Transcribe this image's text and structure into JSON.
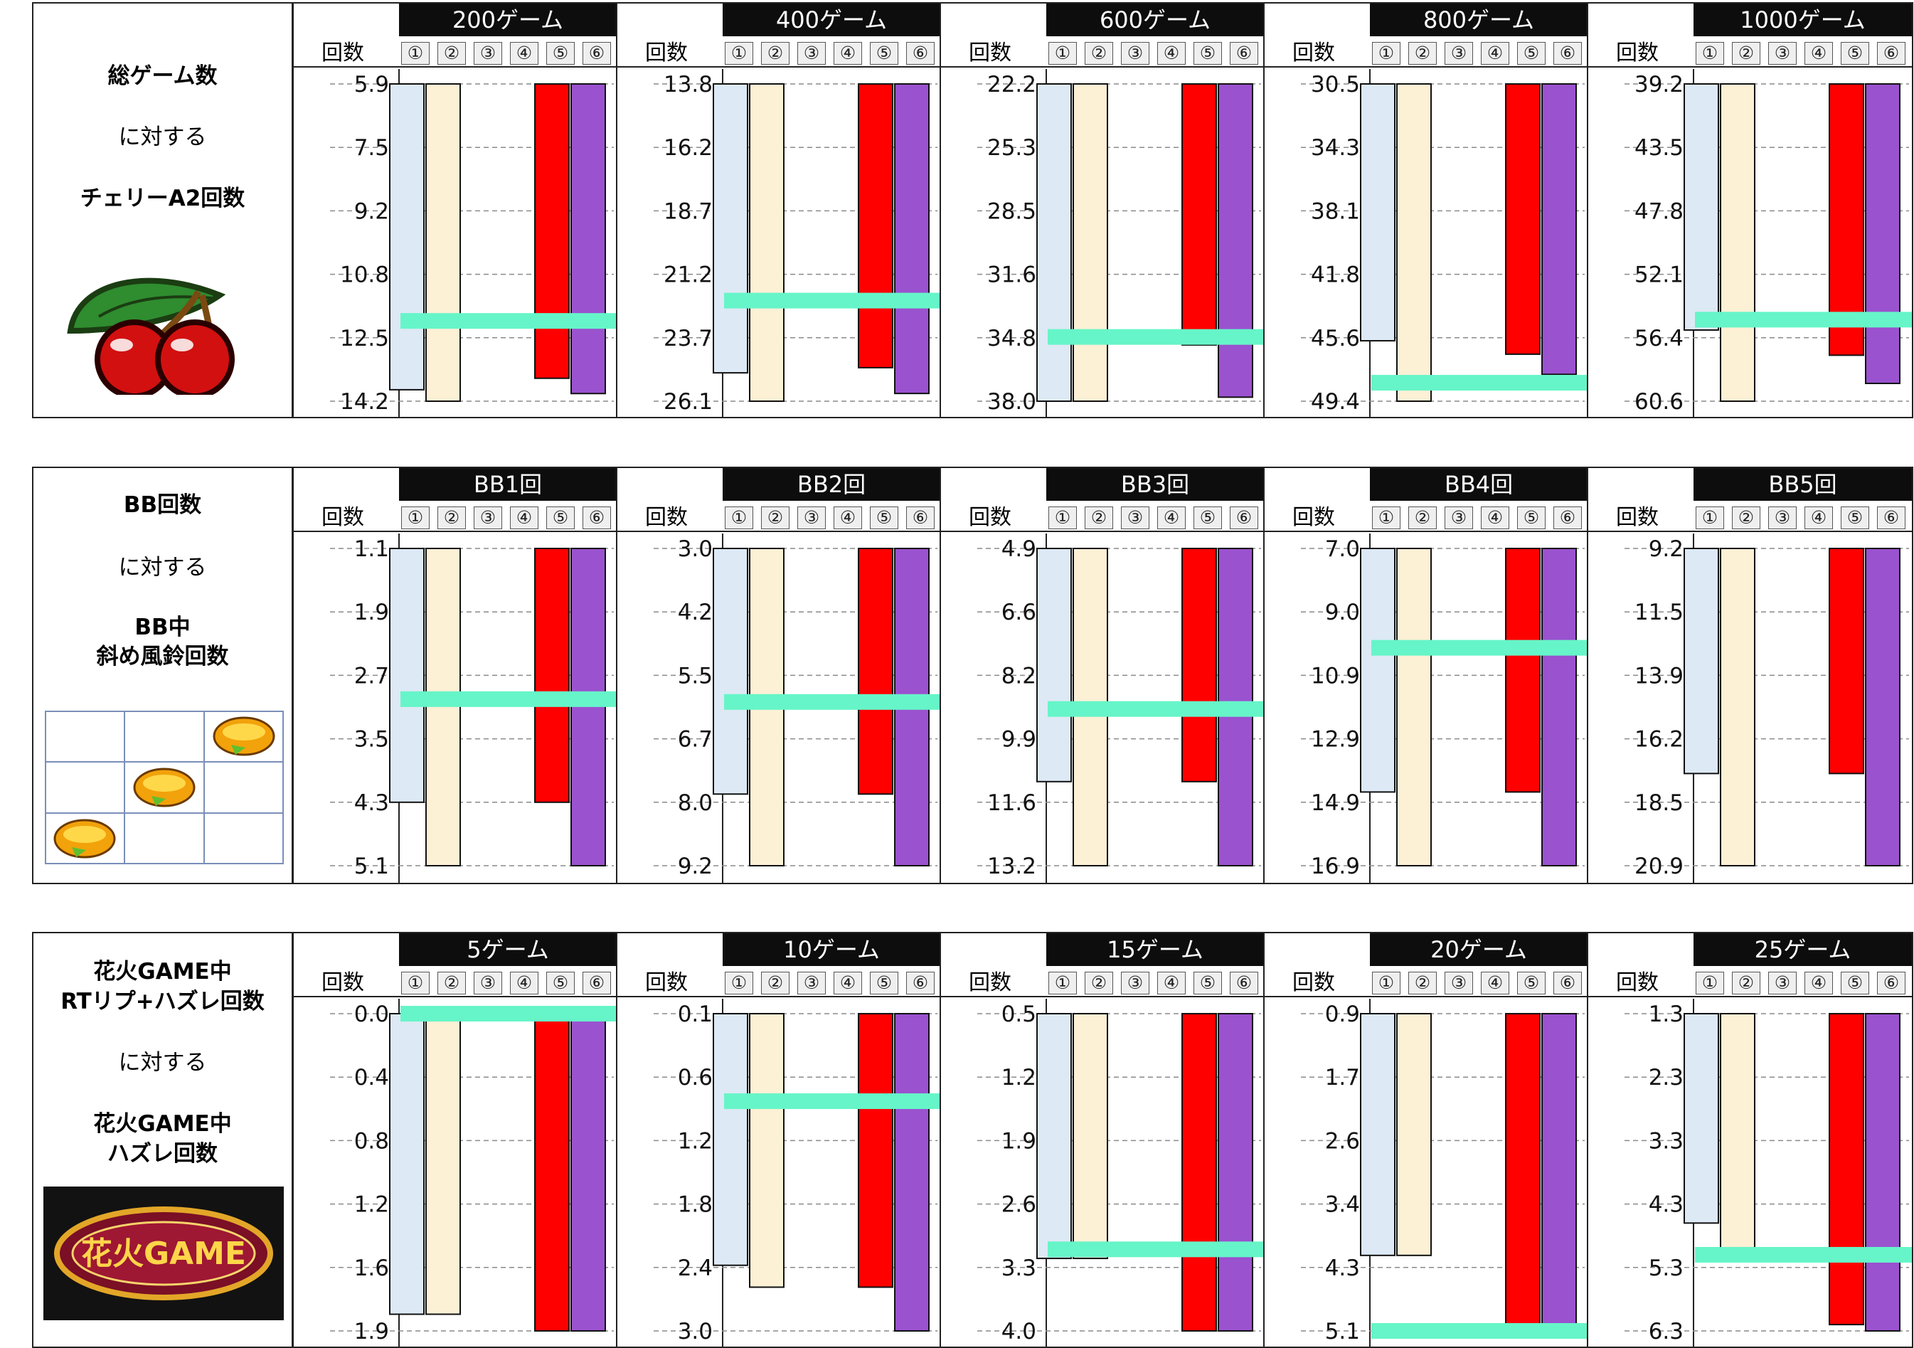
{
  "colors": {
    "setting1": "#dde9f5",
    "setting2": "#fcf0d5",
    "setting5": "#ff0000",
    "setting6": "#9a52cf",
    "current_line": "#66f5c8",
    "header_bg": "#0d0d0d"
  },
  "header": {
    "count_label": "回数",
    "settings": [
      "①",
      "②",
      "③",
      "④",
      "⑤",
      "⑥"
    ]
  },
  "rows": [
    {
      "label_lines": [
        "総ゲーム数",
        "に対する",
        "チェリーA2回数"
      ],
      "icon": "cherry-icon",
      "panels": [
        {
          "title": "200ゲーム",
          "ticks": [
            "5.9",
            "7.5",
            "9.2",
            "10.8",
            "12.5",
            "14.2"
          ]
        },
        {
          "title": "400ゲーム",
          "ticks": [
            "13.8",
            "16.2",
            "18.7",
            "21.2",
            "23.7",
            "26.1"
          ]
        },
        {
          "title": "600ゲーム",
          "ticks": [
            "22.2",
            "25.3",
            "28.5",
            "31.6",
            "34.8",
            "38.0"
          ]
        },
        {
          "title": "800ゲーム",
          "ticks": [
            "30.5",
            "34.3",
            "38.1",
            "41.8",
            "45.6",
            "49.4"
          ]
        },
        {
          "title": "1000ゲーム",
          "ticks": [
            "39.2",
            "43.5",
            "47.8",
            "52.1",
            "56.4",
            "60.6"
          ]
        }
      ]
    },
    {
      "label_lines": [
        "BB回数",
        "に対する",
        "BB中",
        "斜め風鈴回数"
      ],
      "icon": "diagonal-bell-grid-icon",
      "panels": [
        {
          "title": "BB1回",
          "ticks": [
            "1.1",
            "1.9",
            "2.7",
            "3.5",
            "4.3",
            "5.1"
          ]
        },
        {
          "title": "BB2回",
          "ticks": [
            "3.0",
            "4.2",
            "5.5",
            "6.7",
            "8.0",
            "9.2"
          ]
        },
        {
          "title": "BB3回",
          "ticks": [
            "4.9",
            "6.6",
            "8.2",
            "9.9",
            "11.6",
            "13.2"
          ]
        },
        {
          "title": "BB4回",
          "ticks": [
            "7.0",
            "9.0",
            "10.9",
            "12.9",
            "14.9",
            "16.9"
          ]
        },
        {
          "title": "BB5回",
          "ticks": [
            "9.2",
            "11.5",
            "13.9",
            "16.2",
            "18.5",
            "20.9"
          ]
        }
      ]
    },
    {
      "label_lines": [
        "花火GAME中",
        "RTリプ+ハズレ回数",
        "に対する",
        "花火GAME中",
        "ハズレ回数"
      ],
      "icon": "hanabi-game-logo-icon",
      "logo_text": "花火GAME",
      "panels": [
        {
          "title": "5ゲーム",
          "ticks": [
            "0.0",
            "0.4",
            "0.8",
            "1.2",
            "1.6",
            "1.9"
          ]
        },
        {
          "title": "10ゲーム",
          "ticks": [
            "0.1",
            "0.6",
            "1.2",
            "1.8",
            "2.4",
            "3.0"
          ]
        },
        {
          "title": "15ゲーム",
          "ticks": [
            "0.5",
            "1.2",
            "1.9",
            "2.6",
            "3.3",
            "4.0"
          ]
        },
        {
          "title": "20ゲーム",
          "ticks": [
            "0.9",
            "1.7",
            "2.6",
            "3.4",
            "4.3",
            "5.1"
          ]
        },
        {
          "title": "25ゲーム",
          "ticks": [
            "1.3",
            "2.3",
            "3.3",
            "4.3",
            "5.3",
            "6.3"
          ]
        }
      ]
    }
  ],
  "chart_data": [
    {
      "type": "bar",
      "title": "200ゲーム",
      "ylim": [
        5.9,
        14.2
      ],
      "y_inverted": true,
      "series": [
        {
          "name": "①",
          "values": [
            13.9
          ]
        },
        {
          "name": "②",
          "values": [
            14.2
          ]
        },
        {
          "name": "⑤",
          "values": [
            13.6
          ]
        },
        {
          "name": "⑥",
          "values": [
            14.0
          ]
        }
      ],
      "current_value": 12.1
    },
    {
      "type": "bar",
      "title": "400ゲーム",
      "ylim": [
        13.8,
        26.1
      ],
      "y_inverted": true,
      "series": [
        {
          "name": "①",
          "values": [
            25.0
          ]
        },
        {
          "name": "②",
          "values": [
            26.1
          ]
        },
        {
          "name": "⑤",
          "values": [
            24.8
          ]
        },
        {
          "name": "⑥",
          "values": [
            25.8
          ]
        }
      ],
      "current_value": 22.2
    },
    {
      "type": "bar",
      "title": "600ゲーム",
      "ylim": [
        22.2,
        38.0
      ],
      "y_inverted": true,
      "series": [
        {
          "name": "①",
          "values": [
            38.0
          ]
        },
        {
          "name": "②",
          "values": [
            38.0
          ]
        },
        {
          "name": "⑤",
          "values": [
            35.2
          ]
        },
        {
          "name": "⑥",
          "values": [
            37.8
          ]
        }
      ],
      "current_value": 34.8
    },
    {
      "type": "bar",
      "title": "800ゲーム",
      "ylim": [
        30.5,
        49.4
      ],
      "y_inverted": true,
      "series": [
        {
          "name": "①",
          "values": [
            45.8
          ]
        },
        {
          "name": "②",
          "values": [
            49.4
          ]
        },
        {
          "name": "⑤",
          "values": [
            46.6
          ]
        },
        {
          "name": "⑥",
          "values": [
            47.8
          ]
        }
      ],
      "current_value": 48.3
    },
    {
      "type": "bar",
      "title": "1000ゲーム",
      "ylim": [
        39.2,
        60.6
      ],
      "y_inverted": true,
      "series": [
        {
          "name": "①",
          "values": [
            55.8
          ]
        },
        {
          "name": "②",
          "values": [
            60.6
          ]
        },
        {
          "name": "⑤",
          "values": [
            57.5
          ]
        },
        {
          "name": "⑥",
          "values": [
            59.4
          ]
        }
      ],
      "current_value": 55.1
    },
    {
      "type": "bar",
      "title": "BB1回",
      "ylim": [
        1.1,
        5.1
      ],
      "y_inverted": true,
      "series": [
        {
          "name": "①",
          "values": [
            4.3
          ]
        },
        {
          "name": "②",
          "values": [
            5.1
          ]
        },
        {
          "name": "⑤",
          "values": [
            4.3
          ]
        },
        {
          "name": "⑥",
          "values": [
            5.1
          ]
        }
      ],
      "current_value": 3.0
    },
    {
      "type": "bar",
      "title": "BB2回",
      "ylim": [
        3.0,
        9.2
      ],
      "y_inverted": true,
      "series": [
        {
          "name": "①",
          "values": [
            7.8
          ]
        },
        {
          "name": "②",
          "values": [
            9.2
          ]
        },
        {
          "name": "⑤",
          "values": [
            7.8
          ]
        },
        {
          "name": "⑥",
          "values": [
            9.2
          ]
        }
      ],
      "current_value": 6.0
    },
    {
      "type": "bar",
      "title": "BB3回",
      "ylim": [
        4.9,
        13.2
      ],
      "y_inverted": true,
      "series": [
        {
          "name": "①",
          "values": [
            11.0
          ]
        },
        {
          "name": "②",
          "values": [
            13.2
          ]
        },
        {
          "name": "⑤",
          "values": [
            11.0
          ]
        },
        {
          "name": "⑥",
          "values": [
            13.2
          ]
        }
      ],
      "current_value": 9.1
    },
    {
      "type": "bar",
      "title": "BB4回",
      "ylim": [
        7.0,
        16.9
      ],
      "y_inverted": true,
      "series": [
        {
          "name": "①",
          "values": [
            14.6
          ]
        },
        {
          "name": "②",
          "values": [
            16.9
          ]
        },
        {
          "name": "⑤",
          "values": [
            14.6
          ]
        },
        {
          "name": "⑥",
          "values": [
            16.9
          ]
        }
      ],
      "current_value": 10.1
    },
    {
      "type": "bar",
      "title": "BB5回",
      "ylim": [
        9.2,
        20.9
      ],
      "y_inverted": true,
      "series": [
        {
          "name": "①",
          "values": [
            17.5
          ]
        },
        {
          "name": "②",
          "values": [
            20.9
          ]
        },
        {
          "name": "⑤",
          "values": [
            17.5
          ]
        },
        {
          "name": "⑥",
          "values": [
            20.9
          ]
        }
      ]
    },
    {
      "type": "bar",
      "title": "5ゲーム",
      "ylim": [
        0.0,
        1.9
      ],
      "y_inverted": true,
      "series": [
        {
          "name": "①",
          "values": [
            1.8
          ]
        },
        {
          "name": "②",
          "values": [
            1.8
          ]
        },
        {
          "name": "⑤",
          "values": [
            1.9
          ]
        },
        {
          "name": "⑥",
          "values": [
            1.9
          ]
        }
      ],
      "current_value": 0.0
    },
    {
      "type": "bar",
      "title": "10ゲーム",
      "ylim": [
        0.1,
        3.0
      ],
      "y_inverted": true,
      "series": [
        {
          "name": "①",
          "values": [
            2.4
          ]
        },
        {
          "name": "②",
          "values": [
            2.6
          ]
        },
        {
          "name": "⑤",
          "values": [
            2.6
          ]
        },
        {
          "name": "⑥",
          "values": [
            3.0
          ]
        }
      ],
      "current_value": 0.9
    },
    {
      "type": "bar",
      "title": "15ゲーム",
      "ylim": [
        0.5,
        4.0
      ],
      "y_inverted": true,
      "series": [
        {
          "name": "①",
          "values": [
            3.2
          ]
        },
        {
          "name": "②",
          "values": [
            3.2
          ]
        },
        {
          "name": "⑤",
          "values": [
            4.0
          ]
        },
        {
          "name": "⑥",
          "values": [
            4.0
          ]
        }
      ],
      "current_value": 3.1
    },
    {
      "type": "bar",
      "title": "20ゲーム",
      "ylim": [
        0.9,
        5.1
      ],
      "y_inverted": true,
      "series": [
        {
          "name": "①",
          "values": [
            4.1
          ]
        },
        {
          "name": "②",
          "values": [
            4.1
          ]
        },
        {
          "name": "⑤",
          "values": [
            5.1
          ]
        },
        {
          "name": "⑥",
          "values": [
            5.1
          ]
        }
      ],
      "current_value": 5.1
    },
    {
      "type": "bar",
      "title": "25ゲーム",
      "ylim": [
        1.3,
        6.3
      ],
      "y_inverted": true,
      "series": [
        {
          "name": "①",
          "values": [
            4.6
          ]
        },
        {
          "name": "②",
          "values": [
            5.2
          ]
        },
        {
          "name": "⑤",
          "values": [
            6.2
          ]
        },
        {
          "name": "⑥",
          "values": [
            6.3
          ]
        }
      ],
      "current_value": 5.1
    }
  ]
}
